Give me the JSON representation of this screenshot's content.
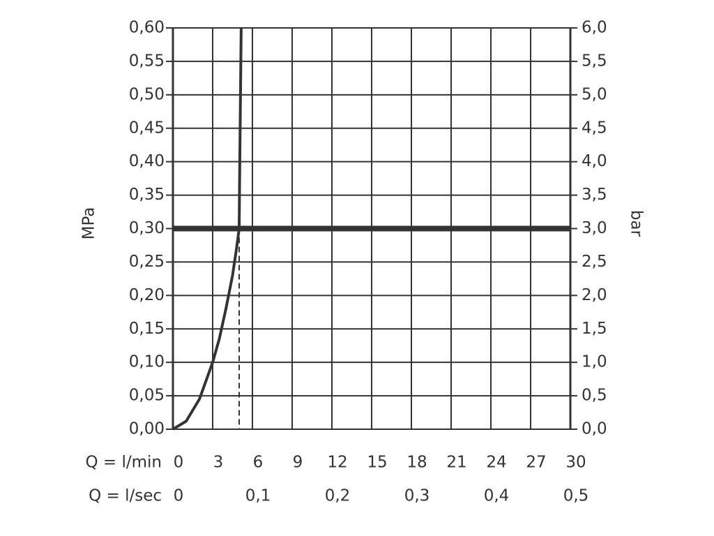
{
  "chart_data": {
    "type": "line",
    "ylabel": "MPa",
    "y2label": "bar",
    "xlabel": "Q = l/min",
    "x2label": "Q = l/sec",
    "x": [
      0,
      1,
      2,
      3,
      3.5,
      4,
      4.5,
      4.8,
      5,
      5.05,
      5.1,
      5.15
    ],
    "series": [
      {
        "color": "#333333",
        "values": [
          0,
          0.012,
          0.045,
          0.1,
          0.135,
          0.18,
          0.23,
          0.27,
          0.3,
          0.4,
          0.5,
          0.6
        ]
      }
    ],
    "xlim": [
      0,
      30
    ],
    "xticks": [
      0,
      3,
      6,
      9,
      12,
      15,
      18,
      21,
      24,
      27,
      30
    ],
    "x2lim": [
      0,
      0.5
    ],
    "x2ticks": [
      0,
      {
        "value": 0.1,
        "label": "0,1"
      },
      {
        "value": 0.2,
        "label": "0,2"
      },
      {
        "value": 0.3,
        "label": "0,3"
      },
      {
        "value": 0.4,
        "label": "0,4"
      },
      {
        "value": 0.5,
        "label": "0,5"
      }
    ],
    "ylim": [
      0,
      0.6
    ],
    "yticks": [
      {
        "value": 0,
        "label": "0,00"
      },
      {
        "value": 0.05,
        "label": "0,05"
      },
      {
        "value": 0.1,
        "label": "0,10"
      },
      {
        "value": 0.15,
        "label": "0,15"
      },
      {
        "value": 0.2,
        "label": "0,20"
      },
      {
        "value": 0.25,
        "label": "0,25"
      },
      {
        "value": 0.3,
        "label": "0,30"
      },
      {
        "value": 0.35,
        "label": "0,35"
      },
      {
        "value": 0.4,
        "label": "0,40"
      },
      {
        "value": 0.45,
        "label": "0,45"
      },
      {
        "value": 0.5,
        "label": "0,50"
      },
      {
        "value": 0.55,
        "label": "0,55"
      },
      {
        "value": 0.6,
        "label": "0,60"
      }
    ],
    "y2lim": [
      0,
      6
    ],
    "y2ticks": [
      {
        "value": 0,
        "label": "0,0"
      },
      {
        "value": 0.5,
        "label": "0,5"
      },
      {
        "value": 1,
        "label": "1,0"
      },
      {
        "value": 1.5,
        "label": "1,5"
      },
      {
        "value": 2,
        "label": "2,0"
      },
      {
        "value": 2.5,
        "label": "2,5"
      },
      {
        "value": 3,
        "label": "3,0"
      },
      {
        "value": 3.5,
        "label": "3,5"
      },
      {
        "value": 4,
        "label": "4,0"
      },
      {
        "value": 4.5,
        "label": "4,5"
      },
      {
        "value": 5,
        "label": "5,0"
      },
      {
        "value": 5.5,
        "label": "5,5"
      },
      {
        "value": 6,
        "label": "6,0"
      }
    ],
    "reference_y": 0.3,
    "reference_x": 5,
    "grid": true
  }
}
